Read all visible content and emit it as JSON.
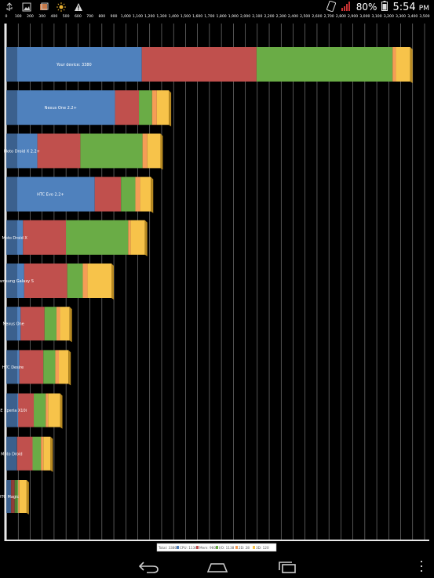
{
  "status_bar": {
    "battery_percent": "80%",
    "time": "5:54",
    "time_suffix": "PM",
    "icons_left": [
      "usb-icon",
      "gallery-icon",
      "layer-icon",
      "brightness-icon",
      "warning-icon"
    ],
    "icons_right": [
      "rotate-lock-icon",
      "signal-icon",
      "battery-icon"
    ]
  },
  "chart_data": {
    "type": "bar",
    "orientation": "horizontal",
    "stacked": true,
    "x_ticks": [
      "0",
      "100",
      "200",
      "300",
      "400",
      "500",
      "600",
      "700",
      "800",
      "900",
      "1,000",
      "1,100",
      "1,200",
      "1,300",
      "1,400",
      "1,500",
      "1,600",
      "1,700",
      "1,800",
      "1,900",
      "2,000",
      "2,100",
      "2,200",
      "2,300",
      "2,400",
      "2,500",
      "2,600",
      "2,700",
      "2,800",
      "2,900",
      "3,000",
      "3,100",
      "3,200",
      "3,300",
      "3,400",
      "3,500"
    ],
    "xlim": [
      0,
      3500
    ],
    "grid": true,
    "categories": [
      "Your device: 3380",
      "Nexus One 2.2+",
      "Moto Droid X 2.2+",
      "HTC Evo 2.2+",
      "Moto Droid X",
      "Samsung Galaxy S",
      "Nexus One",
      "HTC Desire",
      "SE Xperia X10i",
      "Moto Droid",
      "HTC Magic"
    ],
    "series": [
      {
        "name": "CPU: 1134",
        "color": "#4f81bd",
        "values": [
          1134,
          910,
          260,
          740,
          140,
          150,
          120,
          110,
          100,
          90,
          40
        ]
      },
      {
        "name": "Mem: 960",
        "color": "#c0504d",
        "values": [
          960,
          200,
          360,
          220,
          360,
          360,
          200,
          200,
          130,
          130,
          30
        ]
      },
      {
        "name": "I/O: 1138",
        "color": "#6aac46",
        "values": [
          1138,
          110,
          520,
          120,
          520,
          130,
          100,
          100,
          100,
          70,
          30
        ]
      },
      {
        "name": "2D: 28",
        "color": "#f59d56",
        "values": [
          28,
          40,
          40,
          40,
          20,
          40,
          30,
          30,
          20,
          20,
          10
        ]
      },
      {
        "name": "3D: 120",
        "color": "#f7c34a",
        "values": [
          120,
          100,
          110,
          90,
          120,
          200,
          80,
          80,
          100,
          60,
          60
        ]
      }
    ],
    "legend": {
      "placement": "bottom",
      "entries": [
        "Total: 3380",
        "CPU: 1134",
        "Mem: 960",
        "I/O: 1138",
        "2D: 28",
        "3D: 120"
      ]
    }
  },
  "nav_bar": {
    "buttons": [
      "back-button",
      "home-button",
      "recents-button"
    ]
  }
}
